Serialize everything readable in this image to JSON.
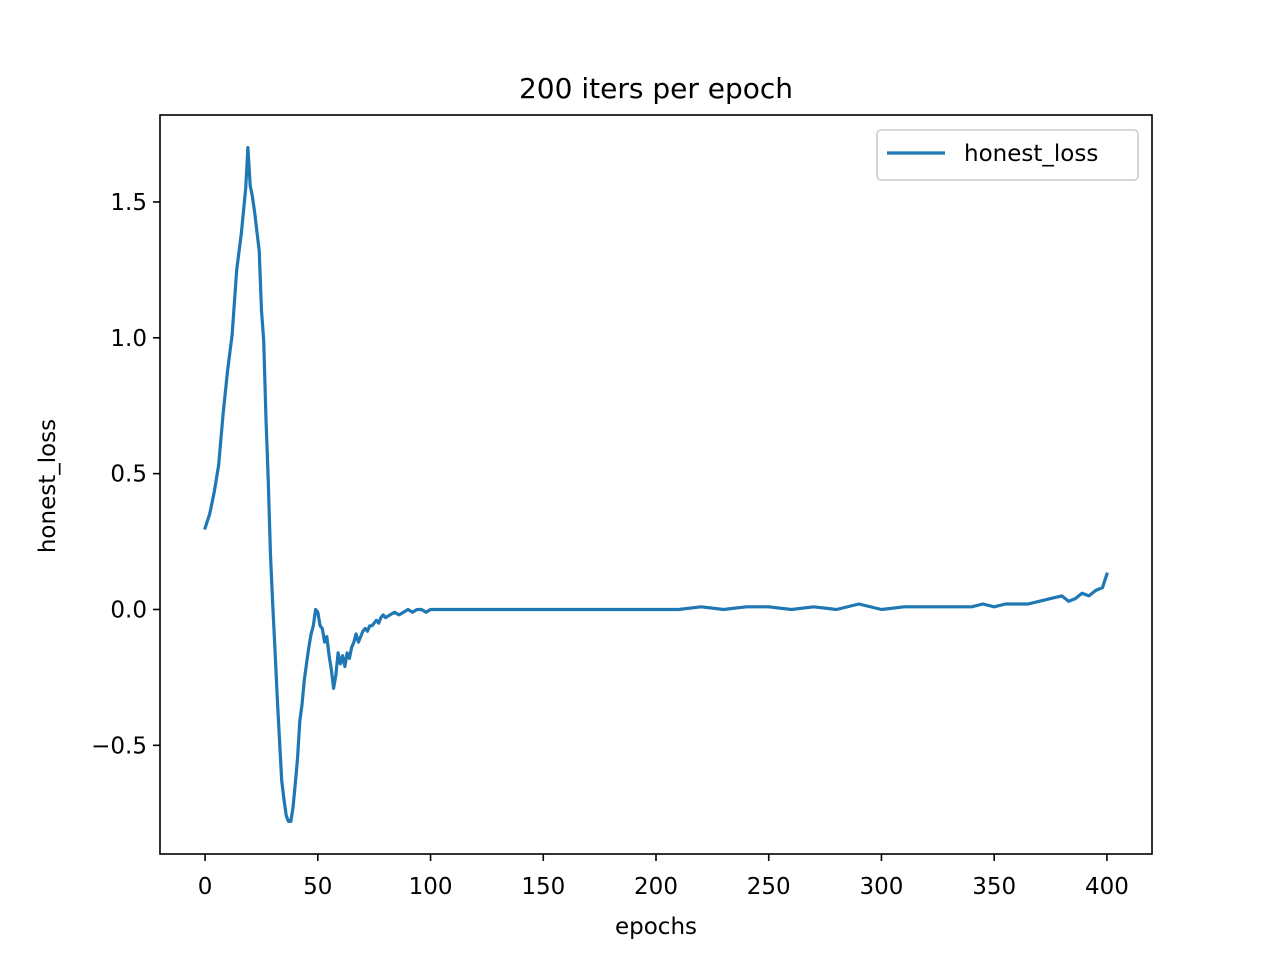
{
  "chart_data": {
    "type": "line",
    "title": "200 iters per epoch",
    "xlabel": "epochs",
    "ylabel": "honest_loss",
    "xlim": [
      -20,
      420
    ],
    "ylim": [
      -0.9,
      1.82
    ],
    "xticks": [
      0,
      50,
      100,
      150,
      200,
      250,
      300,
      350,
      400
    ],
    "yticks": [
      -0.5,
      0.0,
      0.5,
      1.0,
      1.5
    ],
    "xtick_labels": [
      "0",
      "50",
      "100",
      "150",
      "200",
      "250",
      "300",
      "350",
      "400"
    ],
    "ytick_labels": [
      "−0.5",
      "0.0",
      "0.5",
      "1.0",
      "1.5"
    ],
    "grid": false,
    "legend": {
      "position": "top-right"
    },
    "colors": {
      "series": "#1f77b4",
      "axes": "#000000",
      "legend_border": "#cccccc"
    },
    "series": [
      {
        "name": "honest_loss",
        "x": [
          0,
          2,
          4,
          6,
          8,
          10,
          12,
          14,
          16,
          18,
          19,
          20,
          21,
          22,
          24,
          25,
          26,
          27,
          28,
          29,
          30,
          31,
          32,
          33,
          34,
          35,
          36,
          37,
          38,
          39,
          40,
          41,
          42,
          43,
          44,
          45,
          46,
          47,
          48,
          49,
          50,
          51,
          52,
          53,
          54,
          55,
          56,
          57,
          58,
          59,
          60,
          61,
          62,
          63,
          64,
          65,
          66,
          67,
          68,
          69,
          70,
          71,
          72,
          73,
          74,
          75,
          76,
          77,
          78,
          79,
          80,
          82,
          84,
          86,
          88,
          90,
          92,
          94,
          96,
          98,
          100,
          105,
          110,
          115,
          120,
          125,
          130,
          135,
          140,
          145,
          150,
          160,
          170,
          180,
          190,
          200,
          210,
          220,
          230,
          240,
          250,
          260,
          270,
          280,
          290,
          300,
          310,
          320,
          330,
          340,
          345,
          350,
          355,
          360,
          365,
          370,
          375,
          380,
          383,
          386,
          389,
          392,
          395,
          398,
          400
        ],
        "y": [
          0.3,
          0.35,
          0.43,
          0.53,
          0.72,
          0.88,
          1.01,
          1.25,
          1.38,
          1.55,
          1.7,
          1.56,
          1.52,
          1.46,
          1.32,
          1.1,
          0.99,
          0.7,
          0.48,
          0.2,
          0.02,
          -0.15,
          -0.32,
          -0.48,
          -0.63,
          -0.7,
          -0.76,
          -0.78,
          -0.78,
          -0.73,
          -0.64,
          -0.55,
          -0.41,
          -0.35,
          -0.26,
          -0.2,
          -0.14,
          -0.09,
          -0.06,
          0.0,
          -0.01,
          -0.06,
          -0.07,
          -0.12,
          -0.1,
          -0.17,
          -0.22,
          -0.29,
          -0.24,
          -0.16,
          -0.2,
          -0.17,
          -0.21,
          -0.16,
          -0.18,
          -0.14,
          -0.12,
          -0.09,
          -0.12,
          -0.1,
          -0.08,
          -0.07,
          -0.08,
          -0.06,
          -0.06,
          -0.05,
          -0.04,
          -0.05,
          -0.03,
          -0.02,
          -0.03,
          -0.02,
          -0.01,
          -0.02,
          -0.01,
          0.0,
          -0.01,
          0.0,
          0.0,
          -0.01,
          0.0,
          0.0,
          0.0,
          0.0,
          0.0,
          0.0,
          0.0,
          0.0,
          0.0,
          0.0,
          0.0,
          0.0,
          0.0,
          0.0,
          0.0,
          0.0,
          0.0,
          0.01,
          0.0,
          0.01,
          0.01,
          0.0,
          0.01,
          0.0,
          0.02,
          0.0,
          0.01,
          0.01,
          0.01,
          0.01,
          0.02,
          0.01,
          0.02,
          0.02,
          0.02,
          0.03,
          0.04,
          0.05,
          0.03,
          0.04,
          0.06,
          0.05,
          0.07,
          0.08,
          0.13
        ]
      }
    ]
  }
}
